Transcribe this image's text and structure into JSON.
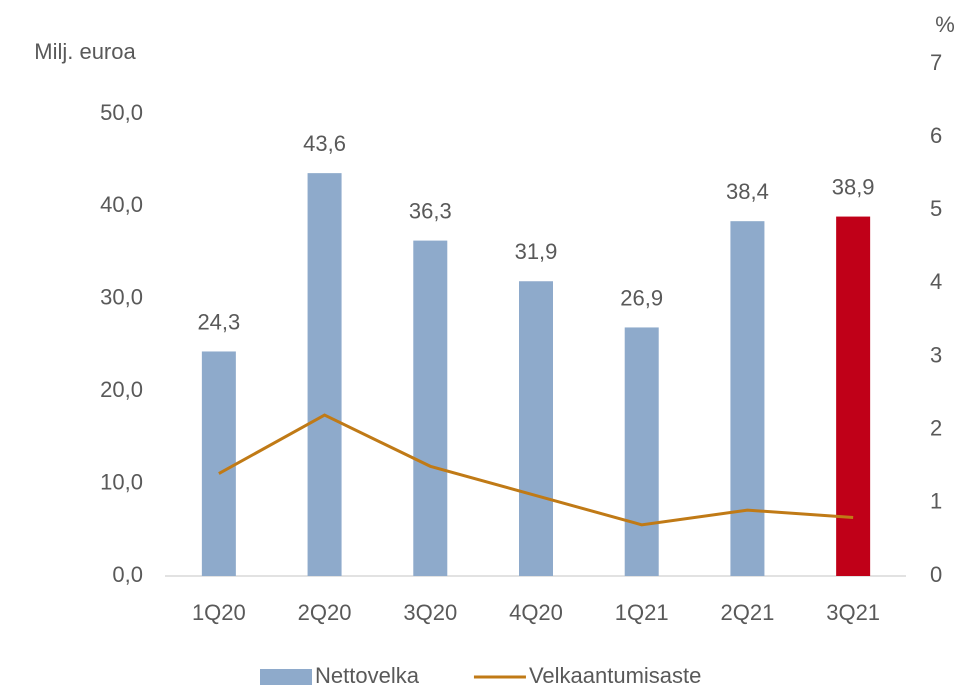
{
  "chart_data": {
    "type": "bar",
    "y_label": "Milj. euroa",
    "y2_label": "%",
    "categories": [
      "1Q20",
      "2Q20",
      "3Q20",
      "4Q20",
      "1Q21",
      "2Q21",
      "3Q21"
    ],
    "series": [
      {
        "name": "Nettovelka",
        "type": "bar",
        "color": "#8eaacb",
        "colors": [
          "#8eaacb",
          "#8eaacb",
          "#8eaacb",
          "#8eaacb",
          "#8eaacb",
          "#8eaacb",
          "#c00018"
        ],
        "values": [
          24.3,
          43.6,
          36.3,
          31.9,
          26.9,
          38.4,
          38.9
        ],
        "value_labels": [
          "24,3",
          "43,6",
          "36,3",
          "31,9",
          "26,9",
          "38,4",
          "38,9"
        ]
      },
      {
        "name": "Velkaantumisaste",
        "type": "line",
        "color": "#c07a16",
        "axis": "y2",
        "values": [
          1.4,
          2.2,
          1.5,
          1.1,
          0.7,
          0.9,
          0.8
        ]
      }
    ],
    "ylim": [
      0,
      50
    ],
    "yticks": [
      {
        "value": 0,
        "label": "0,0"
      },
      {
        "value": 10,
        "label": "10,0"
      },
      {
        "value": 20,
        "label": "20,0"
      },
      {
        "value": 30,
        "label": "30,0"
      },
      {
        "value": 40,
        "label": "40,0"
      },
      {
        "value": 50,
        "label": "50,0"
      }
    ],
    "y2lim": [
      0,
      7
    ],
    "y2ticks": [
      0,
      1,
      2,
      3,
      4,
      5,
      6,
      7
    ],
    "legend": "bottom"
  }
}
